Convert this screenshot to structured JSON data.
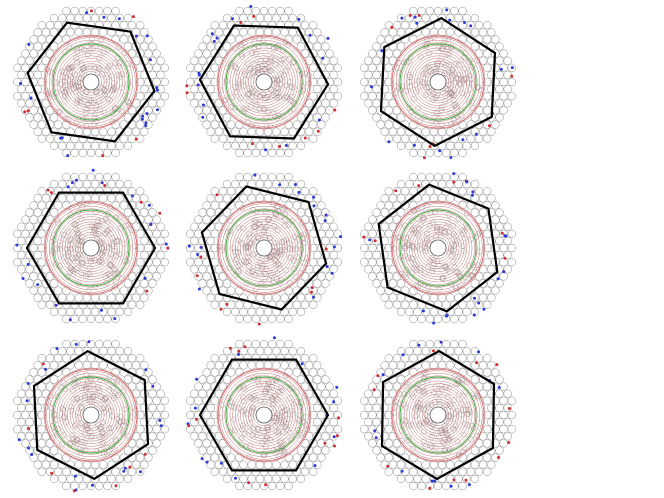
{
  "figure": {
    "panel_count": 9,
    "rows": 3,
    "columns": 3,
    "colors": {
      "background": "#ffffff",
      "cell_outline": "#8a8a8a",
      "hexagon": "#000000",
      "inner_rings": "#b46a6a",
      "green_ring": "#2fa52f",
      "red_ring": "#d04848",
      "blue_marker": "#2a3bd8",
      "red_marker": "#d03030"
    },
    "panels": [
      {
        "id": 1,
        "hexagon_rotation_deg": 8
      },
      {
        "id": 2,
        "hexagon_rotation_deg": 2
      },
      {
        "id": 3,
        "hexagon_rotation_deg": 33
      },
      {
        "id": 4,
        "hexagon_rotation_deg": 0
      },
      {
        "id": 5,
        "hexagon_rotation_deg": 14
      },
      {
        "id": 6,
        "hexagon_rotation_deg": 22
      },
      {
        "id": 7,
        "hexagon_rotation_deg": 27
      },
      {
        "id": 8,
        "hexagon_rotation_deg": 0
      },
      {
        "id": 9,
        "hexagon_rotation_deg": 31
      }
    ]
  }
}
